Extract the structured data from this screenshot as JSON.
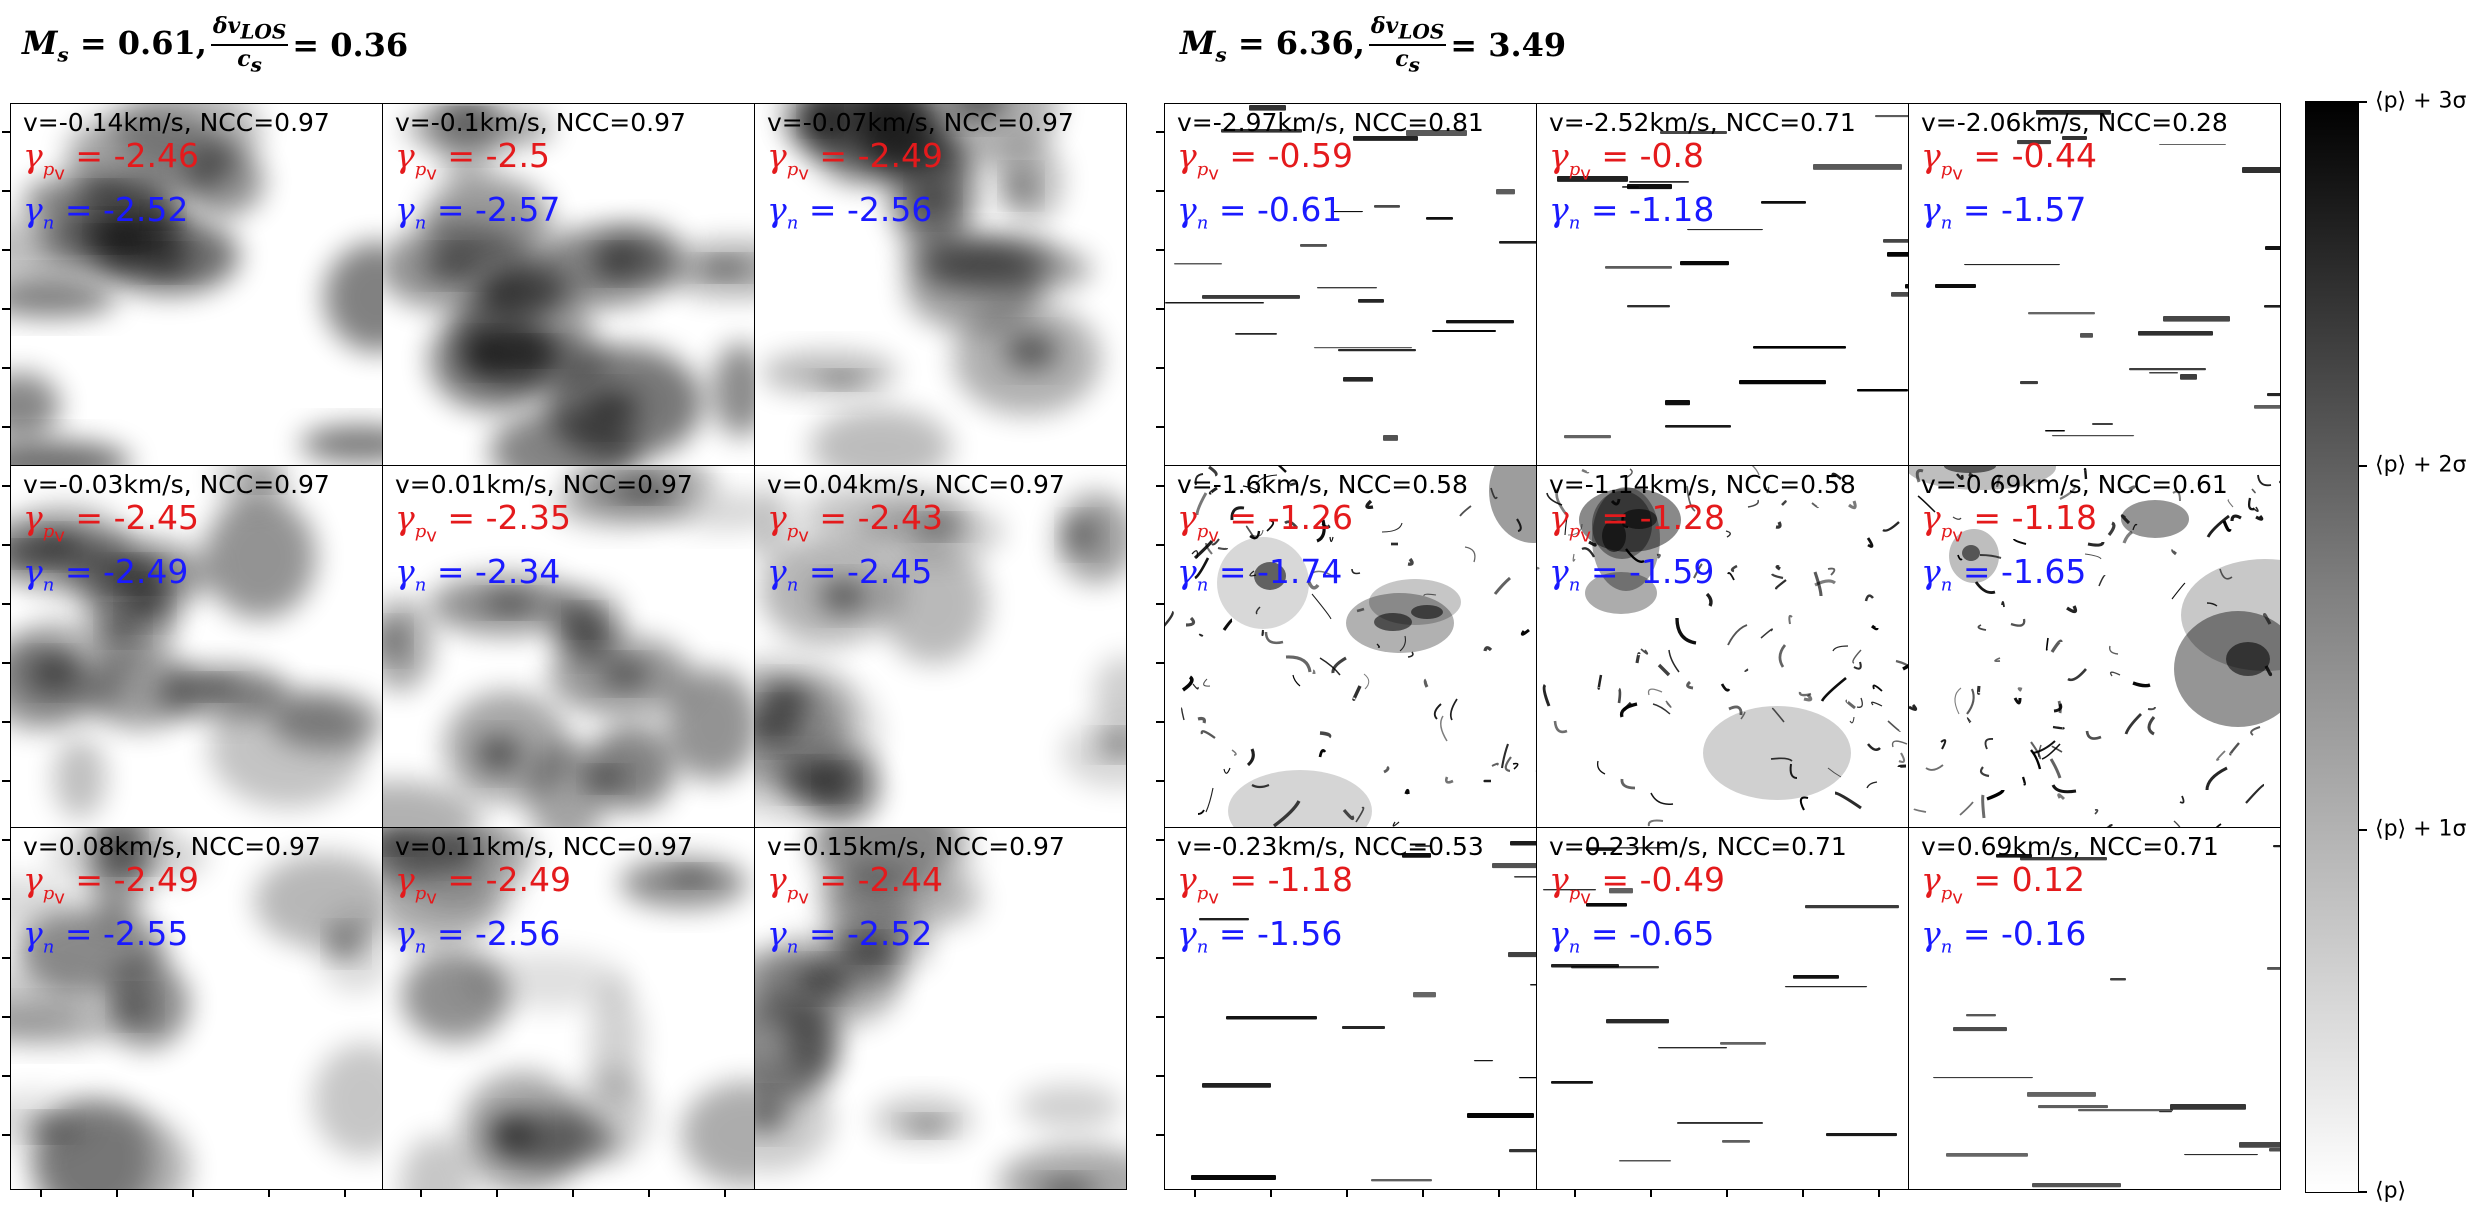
{
  "figure": {
    "left_title": {
      "ms": "0.61",
      "dv": "0.36"
    },
    "right_title": {
      "ms": "6.36",
      "dv": "3.49"
    },
    "left_panels": [
      {
        "v": "v=-0.14km/s, NCC=0.97",
        "gp": "-2.46",
        "gn": "-2.52"
      },
      {
        "v": "v=-0.1km/s, NCC=0.97",
        "gp": "-2.5",
        "gn": "-2.57"
      },
      {
        "v": "v=-0.07km/s, NCC=0.97",
        "gp": "-2.49",
        "gn": "-2.56"
      },
      {
        "v": "v=-0.03km/s, NCC=0.97",
        "gp": "-2.45",
        "gn": "-2.49"
      },
      {
        "v": "v=0.01km/s, NCC=0.97",
        "gp": "-2.35",
        "gn": "-2.34"
      },
      {
        "v": "v=0.04km/s, NCC=0.97",
        "gp": "-2.43",
        "gn": "-2.45"
      },
      {
        "v": "v=0.08km/s, NCC=0.97",
        "gp": "-2.49",
        "gn": "-2.55"
      },
      {
        "v": "v=0.11km/s, NCC=0.97",
        "gp": "-2.49",
        "gn": "-2.56"
      },
      {
        "v": "v=0.15km/s, NCC=0.97",
        "gp": "-2.44",
        "gn": "-2.52"
      }
    ],
    "right_panels": [
      {
        "v": "v=-2.97km/s, NCC=0.81",
        "gp": "-0.59",
        "gn": "-0.61"
      },
      {
        "v": "v=-2.52km/s, NCC=0.71",
        "gp": "-0.8",
        "gn": "-1.18"
      },
      {
        "v": "v=-2.06km/s, NCC=0.28",
        "gp": "-0.44",
        "gn": "-1.57"
      },
      {
        "v": "v=-1.6km/s, NCC=0.58",
        "gp": "-1.26",
        "gn": "-1.74"
      },
      {
        "v": "v=-1.14km/s, NCC=0.58",
        "gp": "-1.28",
        "gn": "-1.59"
      },
      {
        "v": "v=-0.69km/s, NCC=0.61",
        "gp": "-1.18",
        "gn": "-1.65"
      },
      {
        "v": "v=-0.23km/s, NCC=0.53",
        "gp": "-1.18",
        "gn": "-1.56"
      },
      {
        "v": "v=0.23km/s, NCC=0.71",
        "gp": "-0.49",
        "gn": "-0.65"
      },
      {
        "v": "v=0.69km/s, NCC=0.71",
        "gp": "0.12",
        "gn": "-0.16"
      }
    ],
    "colorbar": {
      "labels": [
        "⟨p⟩ + 3σ",
        "⟨p⟩ + 2σ",
        "⟨p⟩ + 1σ",
        "⟨p⟩"
      ],
      "top_color": "#000000",
      "bottom_color": "#ffffff"
    }
  }
}
